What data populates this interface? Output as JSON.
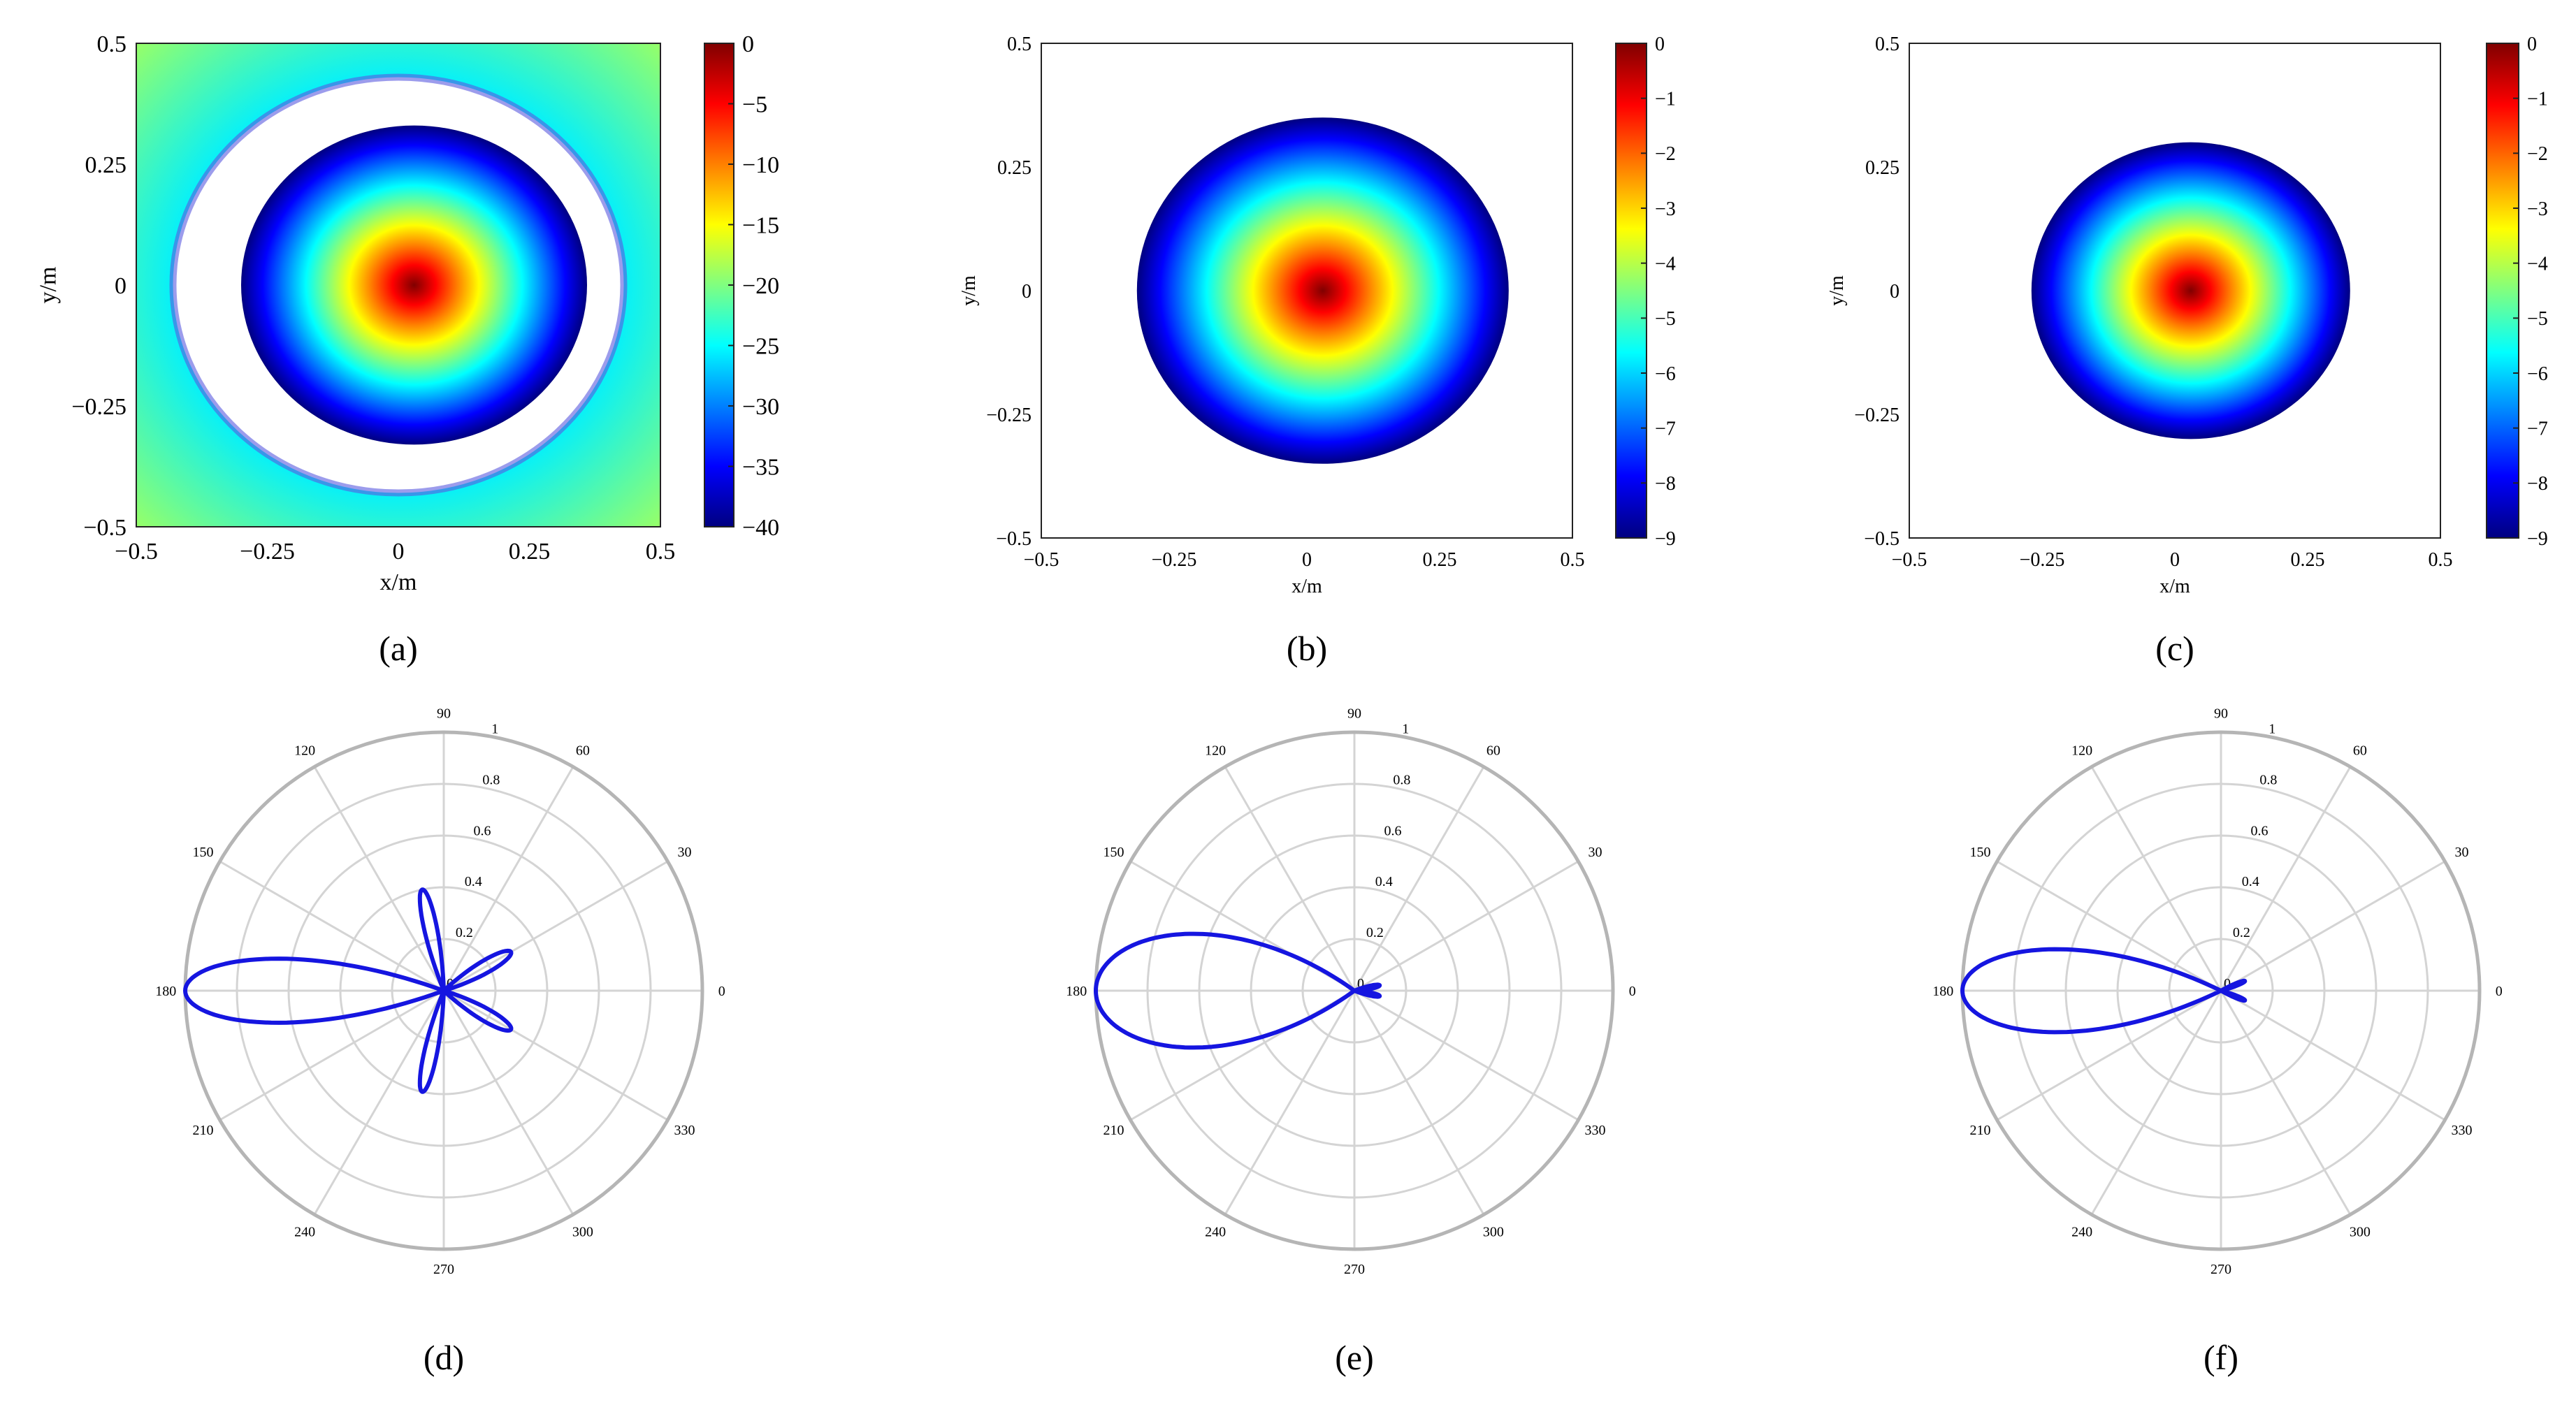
{
  "chart_data": [
    {
      "panel": "a",
      "type": "heatmap",
      "caption": "(a)",
      "xlabel": "x/m",
      "ylabel": "y/m",
      "xlim": [
        -0.5,
        0.5
      ],
      "ylim": [
        -0.5,
        0.5
      ],
      "x_ticks": [
        -0.5,
        -0.25,
        0,
        0.25,
        0.5
      ],
      "y_ticks": [
        -0.5,
        -0.25,
        0,
        0.25,
        0.5
      ],
      "x_tick_labels": [
        "−0.5",
        "−0.25",
        "0",
        "0.25",
        "0.5"
      ],
      "y_tick_labels": [
        "−0.5",
        "−0.25",
        "0",
        "0.25",
        "0.5"
      ],
      "colorbar": {
        "range": [
          -40,
          0
        ],
        "ticks": [
          0,
          -5,
          -10,
          -15,
          -20,
          -25,
          -30,
          -35,
          -40
        ],
        "tick_labels": [
          "0",
          "−5",
          "−10",
          "−15",
          "−20",
          "−25",
          "−30",
          "−35",
          "−40"
        ]
      },
      "peak_value": 0,
      "peak_location": [
        0.03,
        0
      ],
      "main_beam_radius": 0.33,
      "null_ring_radius": [
        0.33,
        0.43
      ],
      "outer_level": -20,
      "colormap": "jet",
      "grid": false
    },
    {
      "panel": "b",
      "type": "heatmap",
      "caption": "(b)",
      "xlabel": "x/m",
      "ylabel": "y/m",
      "xlim": [
        -0.5,
        0.5
      ],
      "ylim": [
        -0.5,
        0.5
      ],
      "x_ticks": [
        -0.5,
        -0.25,
        0,
        0.25,
        0.5
      ],
      "y_ticks": [
        -0.5,
        -0.25,
        0,
        0.25,
        0.5
      ],
      "x_tick_labels": [
        "−0.5",
        "−0.25",
        "0",
        "0.25",
        "0.5"
      ],
      "y_tick_labels": [
        "−0.5",
        "−0.25",
        "0",
        "0.25",
        "0.5"
      ],
      "colorbar": {
        "range": [
          -9,
          0
        ],
        "ticks": [
          0,
          -1,
          -2,
          -3,
          -4,
          -5,
          -6,
          -7,
          -8,
          -9
        ],
        "tick_labels": [
          "0",
          "−1",
          "−2",
          "−3",
          "−4",
          "−5",
          "−6",
          "−7",
          "−8",
          "−9"
        ]
      },
      "peak_value": 0,
      "peak_location": [
        0.03,
        0
      ],
      "main_beam_radius": 0.35,
      "colormap": "jet",
      "grid": false
    },
    {
      "panel": "c",
      "type": "heatmap",
      "caption": "(c)",
      "xlabel": "x/m",
      "ylabel": "y/m",
      "xlim": [
        -0.5,
        0.5
      ],
      "ylim": [
        -0.5,
        0.5
      ],
      "x_ticks": [
        -0.5,
        -0.25,
        0,
        0.25,
        0.5
      ],
      "y_ticks": [
        -0.5,
        -0.25,
        0,
        0.25,
        0.5
      ],
      "x_tick_labels": [
        "−0.5",
        "−0.25",
        "0",
        "0.25",
        "0.5"
      ],
      "y_tick_labels": [
        "−0.5",
        "−0.25",
        "0",
        "0.25",
        "0.5"
      ],
      "colorbar": {
        "range": [
          -9,
          0
        ],
        "ticks": [
          0,
          -1,
          -2,
          -3,
          -4,
          -5,
          -6,
          -7,
          -8,
          -9
        ],
        "tick_labels": [
          "0",
          "−1",
          "−2",
          "−3",
          "−4",
          "−5",
          "−6",
          "−7",
          "−8",
          "−9"
        ]
      },
      "peak_value": 0,
      "peak_location": [
        0.03,
        0
      ],
      "main_beam_radius": 0.3,
      "colormap": "jet",
      "grid": false
    },
    {
      "panel": "d",
      "type": "line",
      "coordinate_system": "polar",
      "caption": "(d)",
      "r_ticks": [
        0,
        0.2,
        0.4,
        0.6,
        0.8,
        1
      ],
      "r_tick_labels": [
        "0",
        "0.2",
        "0.4",
        "0.6",
        "0.8",
        "1"
      ],
      "rlim": [
        0,
        1
      ],
      "angle_ticks": [
        0,
        30,
        60,
        90,
        120,
        150,
        180,
        210,
        240,
        270,
        300,
        330
      ],
      "angle_tick_labels": [
        "0",
        "30",
        "60",
        "90",
        "120",
        "150",
        "180",
        "210",
        "240",
        "270",
        "300",
        "330"
      ],
      "grid": true,
      "color": "#1515e0",
      "lobes": [
        {
          "direction_deg": 180,
          "peak": 1.0,
          "half_width_deg": 20
        },
        {
          "direction_deg": 102,
          "peak": 0.4,
          "half_width_deg": 10
        },
        {
          "direction_deg": 258,
          "peak": 0.4,
          "half_width_deg": 10
        },
        {
          "direction_deg": 30,
          "peak": 0.3,
          "half_width_deg": 13
        },
        {
          "direction_deg": 330,
          "peak": 0.3,
          "half_width_deg": 13
        }
      ]
    },
    {
      "panel": "e",
      "type": "line",
      "coordinate_system": "polar",
      "caption": "(e)",
      "r_ticks": [
        0,
        0.2,
        0.4,
        0.6,
        0.8,
        1
      ],
      "r_tick_labels": [
        "0",
        "0.2",
        "0.4",
        "0.6",
        "0.8",
        "1"
      ],
      "rlim": [
        0,
        1
      ],
      "angle_ticks": [
        0,
        30,
        60,
        90,
        120,
        150,
        180,
        210,
        240,
        270,
        300,
        330
      ],
      "angle_tick_labels": [
        "0",
        "30",
        "60",
        "90",
        "120",
        "150",
        "180",
        "210",
        "240",
        "270",
        "300",
        "330"
      ],
      "grid": true,
      "color": "#1515e0",
      "lobes": [
        {
          "direction_deg": 180,
          "peak": 1.0,
          "half_width_deg": 36
        },
        {
          "direction_deg": 12,
          "peak": 0.1,
          "half_width_deg": 10
        },
        {
          "direction_deg": 348,
          "peak": 0.1,
          "half_width_deg": 10
        }
      ]
    },
    {
      "panel": "f",
      "type": "line",
      "coordinate_system": "polar",
      "caption": "(f)",
      "r_ticks": [
        0,
        0.2,
        0.4,
        0.6,
        0.8,
        1
      ],
      "r_tick_labels": [
        "0",
        "0.2",
        "0.4",
        "0.6",
        "0.8",
        "1"
      ],
      "rlim": [
        0,
        1
      ],
      "angle_ticks": [
        0,
        30,
        60,
        90,
        120,
        150,
        180,
        210,
        240,
        270,
        300,
        330
      ],
      "angle_tick_labels": [
        "0",
        "30",
        "60",
        "90",
        "120",
        "150",
        "180",
        "210",
        "240",
        "270",
        "300",
        "330"
      ],
      "grid": true,
      "color": "#1515e0",
      "lobes": [
        {
          "direction_deg": 180,
          "peak": 1.0,
          "half_width_deg": 26
        },
        {
          "direction_deg": 22,
          "peak": 0.1,
          "half_width_deg": 8
        },
        {
          "direction_deg": 338,
          "peak": 0.1,
          "half_width_deg": 8
        }
      ]
    }
  ]
}
